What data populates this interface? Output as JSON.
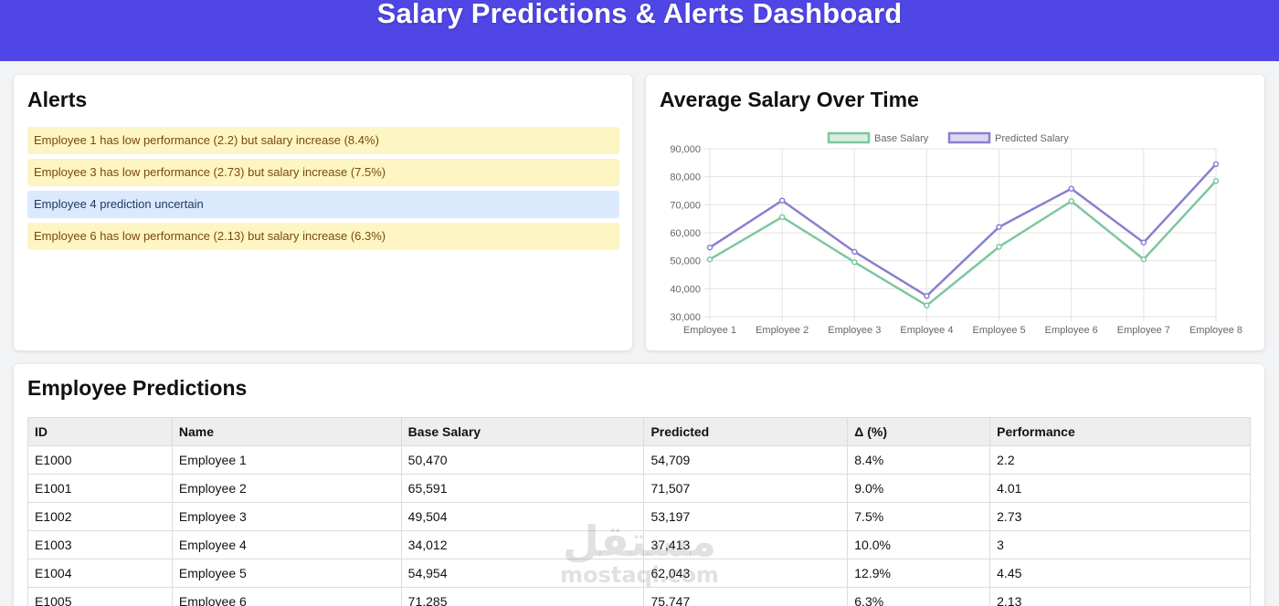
{
  "header": {
    "title": "Salary Predictions & Alerts Dashboard"
  },
  "alerts": {
    "title": "Alerts",
    "items": [
      {
        "text": "Employee 1 has low performance (2.2) but salary increase (8.4%)",
        "type": "warning"
      },
      {
        "text": "Employee 3 has low performance (2.73) but salary increase (7.5%)",
        "type": "warning"
      },
      {
        "text": "Employee 4 prediction uncertain",
        "type": "info"
      },
      {
        "text": "Employee 6 has low performance (2.13) but salary increase (6.3%)",
        "type": "warning"
      }
    ]
  },
  "chart": {
    "title": "Average Salary Over Time"
  },
  "chart_data": {
    "type": "line",
    "categories": [
      "Employee 1",
      "Employee 2",
      "Employee 3",
      "Employee 4",
      "Employee 5",
      "Employee 6",
      "Employee 7",
      "Employee 8"
    ],
    "series": [
      {
        "name": "Base Salary",
        "color": "#7ec79e",
        "values": [
          50470,
          65591,
          49504,
          34012,
          54954,
          71285,
          50500,
          78500
        ]
      },
      {
        "name": "Predicted Salary",
        "color": "#8a7fd0",
        "values": [
          54709,
          71507,
          53197,
          37413,
          62043,
          75747,
          56500,
          84500
        ]
      }
    ],
    "ylim": [
      30000,
      90000
    ],
    "yticks": [
      "90,000",
      "80,000",
      "70,000",
      "60,000",
      "50,000",
      "40,000",
      "30,000"
    ],
    "ytick_values": [
      90000,
      80000,
      70000,
      60000,
      50000,
      40000,
      30000
    ],
    "legend": "top",
    "grid": true
  },
  "table": {
    "title": "Employee Predictions",
    "columns": [
      "ID",
      "Name",
      "Base Salary",
      "Predicted",
      "Δ (%)",
      "Performance"
    ],
    "rows": [
      [
        "E1000",
        "Employee 1",
        "50,470",
        "54,709",
        "8.4%",
        "2.2"
      ],
      [
        "E1001",
        "Employee 2",
        "65,591",
        "71,507",
        "9.0%",
        "4.01"
      ],
      [
        "E1002",
        "Employee 3",
        "49,504",
        "53,197",
        "7.5%",
        "2.73"
      ],
      [
        "E1003",
        "Employee 4",
        "34,012",
        "37,413",
        "10.0%",
        "3"
      ],
      [
        "E1004",
        "Employee 5",
        "54,954",
        "62,043",
        "12.9%",
        "4.45"
      ],
      [
        "E1005",
        "Employee 6",
        "71,285",
        "75,747",
        "6.3%",
        "2.13"
      ]
    ]
  },
  "watermark": {
    "arabic": "مستقل",
    "latin": "mostaql.com"
  }
}
